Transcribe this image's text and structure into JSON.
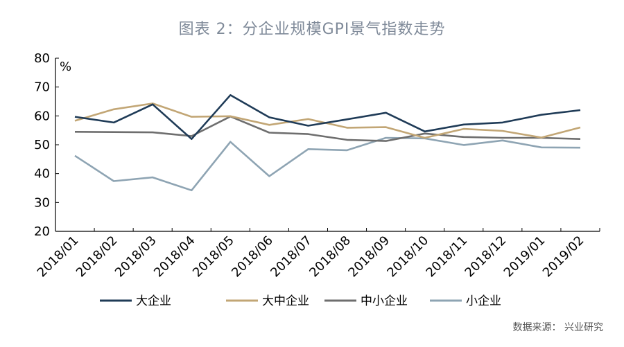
{
  "title": "图表 2：分企业规模GPI景气指数走势",
  "source": "数据来源：  兴业研究",
  "chart_data": {
    "type": "line",
    "categories": [
      "2018/01",
      "2018/02",
      "2018/03",
      "2018/04",
      "2018/05",
      "2018/06",
      "2018/07",
      "2018/08",
      "2018/09",
      "2018/10",
      "2018/11",
      "2018/12",
      "2019/01",
      "2019/02"
    ],
    "yunit": "%",
    "ylim": [
      20,
      80
    ],
    "yticks": [
      20,
      30,
      40,
      50,
      60,
      70,
      80
    ],
    "grid": false,
    "legend_position": "bottom",
    "series": [
      {
        "name": "大企业",
        "color": "#1f3b57",
        "values": [
          59.7,
          57.7,
          64.0,
          52.0,
          67.2,
          59.5,
          56.6,
          58.8,
          61.1,
          54.6,
          57.0,
          57.7,
          60.4,
          62.0
        ]
      },
      {
        "name": "大中企业",
        "color": "#c2a675",
        "values": [
          58.3,
          62.3,
          64.3,
          59.7,
          59.9,
          56.9,
          58.9,
          55.9,
          56.1,
          52.4,
          55.5,
          54.8,
          52.5,
          56.0
        ]
      },
      {
        "name": "中小企业",
        "color": "#6e6e6e",
        "values": [
          54.5,
          54.4,
          54.3,
          53.0,
          59.8,
          54.2,
          53.7,
          51.7,
          51.3,
          53.9,
          52.7,
          52.4,
          52.4,
          52.0
        ]
      },
      {
        "name": "小企业",
        "color": "#8ea4b3",
        "values": [
          46.2,
          37.4,
          38.7,
          34.2,
          51.0,
          39.1,
          48.5,
          48.1,
          52.4,
          52.2,
          49.9,
          51.5,
          49.1,
          49.0
        ]
      }
    ]
  }
}
